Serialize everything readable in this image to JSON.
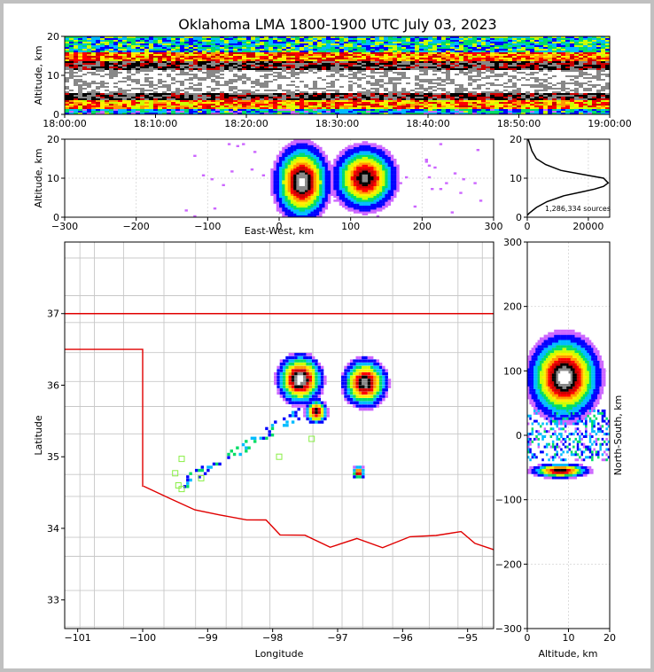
{
  "chart_data": [
    {
      "type": "heatmap",
      "panel": "altitude-vs-time",
      "title": "Oklahoma LMA 1800-1900 UTC July 03, 2023",
      "xlabel": "",
      "ylabel": "Altitude, km",
      "xlim": [
        "18:00:00",
        "19:00:00"
      ],
      "ylim": [
        0,
        20
      ],
      "xticks": [
        "18:00:00",
        "18:10:00",
        "18:20:00",
        "18:30:00",
        "18:40:00",
        "18:50:00",
        "19:00:00"
      ],
      "yticks": [
        0,
        10,
        20
      ]
    },
    {
      "type": "heatmap",
      "panel": "altitude-vs-east-west",
      "xlabel": "East-West, km",
      "ylabel": "Altitude, km",
      "xlim": [
        -300,
        300
      ],
      "ylim": [
        0,
        20
      ],
      "xticks": [
        -300,
        -200,
        -100,
        0,
        100,
        200,
        300
      ],
      "yticks": [
        0,
        10,
        20
      ]
    },
    {
      "type": "line",
      "panel": "altitude-histogram",
      "xlim": [
        0,
        27000
      ],
      "ylim": [
        0,
        20
      ],
      "xticks": [
        0,
        20000
      ],
      "yticks": [
        0,
        10,
        20
      ],
      "annotation": "1,286,334 sources",
      "x": [
        0,
        600,
        3000,
        6500,
        12000,
        18000,
        22000,
        25000,
        26500,
        25000,
        18000,
        11000,
        6000,
        3000,
        1500,
        700,
        300
      ],
      "y": [
        0.5,
        1,
        2.5,
        4,
        5.5,
        6.5,
        7.2,
        7.9,
        8.8,
        10,
        11,
        12,
        13.5,
        15,
        17,
        19,
        20
      ]
    },
    {
      "type": "heatmap",
      "panel": "plan-view",
      "xlabel": "Longitude",
      "ylabel": "Latitude",
      "xlim": [
        -101.2,
        -94.6
      ],
      "ylim": [
        32.6,
        38
      ],
      "xticks": [
        -101,
        -100,
        -99,
        -98,
        -97,
        -96,
        -95
      ],
      "yticks": [
        33,
        34,
        35,
        36,
        37
      ]
    },
    {
      "type": "heatmap",
      "panel": "north-south-vs-altitude",
      "xlabel": "Altitude, km",
      "ylabel": "North-South, km",
      "xlim": [
        0,
        20
      ],
      "ylim": [
        -300,
        300
      ],
      "xticks": [
        0,
        10,
        20
      ],
      "yticks": [
        -300,
        -200,
        -100,
        0,
        100,
        200,
        300
      ]
    }
  ],
  "colors": {
    "state_border": "#e00000",
    "county_lines": "#c8c8c8",
    "stations": "#88ee44",
    "palette": [
      "#cc66ff",
      "#0000ff",
      "#00bbff",
      "#00dd66",
      "#ccff00",
      "#ffee00",
      "#ff9900",
      "#ff0000",
      "#cc0000",
      "#000000",
      "#888888",
      "#ffffff"
    ]
  }
}
